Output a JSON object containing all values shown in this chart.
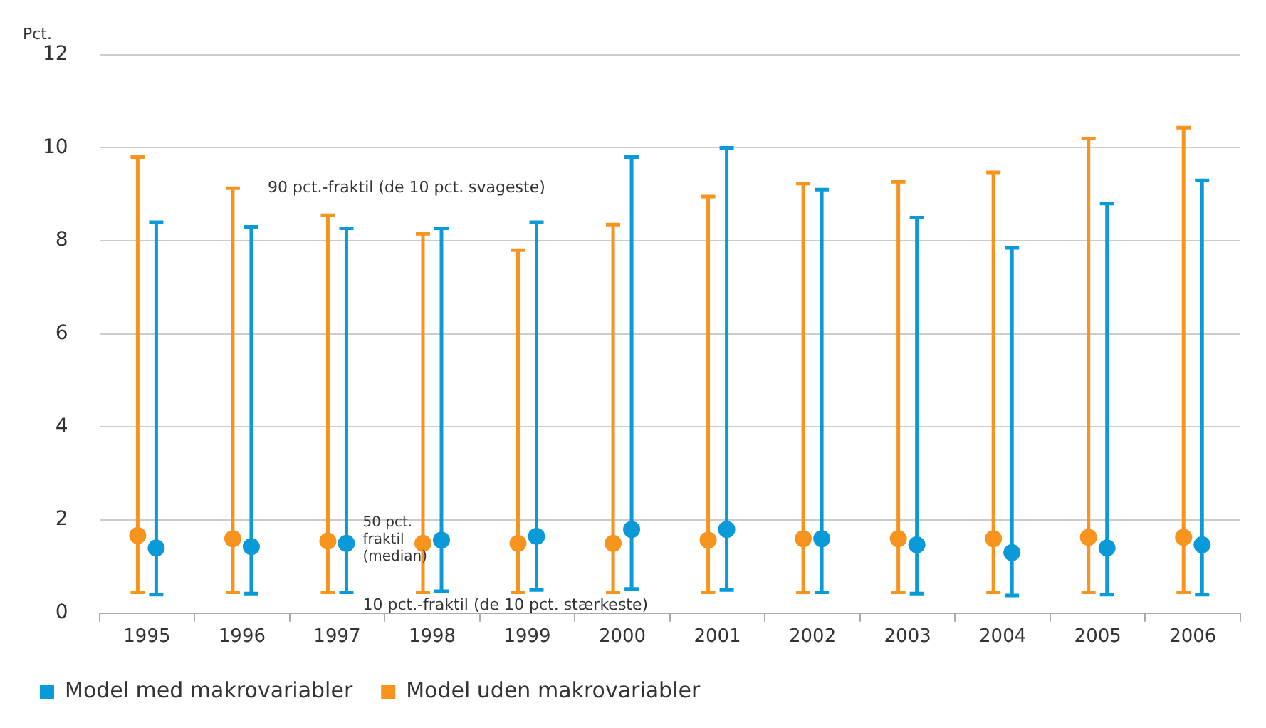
{
  "chart_data": {
    "type": "scatter",
    "ylabel": "Pct.",
    "categories": [
      "1995",
      "1996",
      "1997",
      "1998",
      "1999",
      "2000",
      "2001",
      "2002",
      "2003",
      "2004",
      "2005",
      "2006"
    ],
    "series": [
      {
        "name": "Model med makrovariabler",
        "color": "#0a9ad7",
        "values": [
          1.4,
          1.43,
          1.5,
          1.57,
          1.65,
          1.8,
          1.8,
          1.6,
          1.47,
          1.3,
          1.4,
          1.47
        ],
        "errors": [
          [
            0.4,
            8.4
          ],
          [
            0.42,
            8.3
          ],
          [
            0.45,
            8.27
          ],
          [
            0.47,
            8.27
          ],
          [
            0.5,
            8.4
          ],
          [
            0.52,
            9.8
          ],
          [
            0.5,
            10.0
          ],
          [
            0.45,
            9.1
          ],
          [
            0.42,
            8.5
          ],
          [
            0.38,
            7.85
          ],
          [
            0.4,
            8.8
          ],
          [
            0.4,
            9.3
          ]
        ]
      },
      {
        "name": "Model uden makrovariabler",
        "color": "#f7941d",
        "values": [
          1.67,
          1.6,
          1.55,
          1.5,
          1.5,
          1.5,
          1.57,
          1.6,
          1.6,
          1.6,
          1.63,
          1.63
        ],
        "errors": [
          [
            0.45,
            9.8
          ],
          [
            0.45,
            9.13
          ],
          [
            0.45,
            8.55
          ],
          [
            0.45,
            8.15
          ],
          [
            0.45,
            7.8
          ],
          [
            0.45,
            8.35
          ],
          [
            0.45,
            8.95
          ],
          [
            0.45,
            9.23
          ],
          [
            0.45,
            9.27
          ],
          [
            0.45,
            9.47
          ],
          [
            0.45,
            10.2
          ],
          [
            0.45,
            10.43
          ]
        ]
      }
    ],
    "annotations": [
      {
        "text": "90 pct.-fraktil (de 10 pct. svageste)",
        "x": "1996",
        "y": 9.13
      },
      {
        "text": "50 pct. fraktil (median)",
        "x": "1997",
        "y": 1.55
      },
      {
        "text": "10 pct.-fraktil (de 10 pct. stærkeste)",
        "x": "1997",
        "y": 0.45
      }
    ],
    "ylim": [
      0,
      12
    ],
    "yticks": [
      0,
      2,
      4,
      6,
      8,
      10,
      12
    ],
    "grid": "y",
    "legend": "bottom left",
    "marker": "circle"
  }
}
